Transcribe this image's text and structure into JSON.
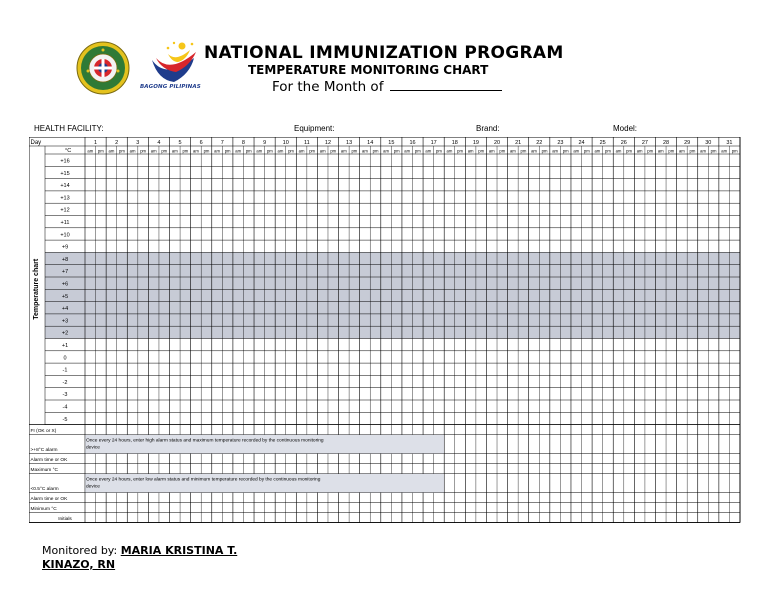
{
  "header": {
    "title": "NATIONAL IMMUNIZATION PROGRAM",
    "subtitle": "TEMPERATURE MONITORING CHART",
    "month_label": "For the Month of",
    "logo_text": "BAGONG PILIPINAS",
    "seal_text": "REPUBLIKA NG PILIPINAS · KAGAWARAN NG KALUSUGAN"
  },
  "fields": {
    "facility": "HEALTH FACILITY:",
    "equipment": "Equipment:",
    "brand": "Brand:",
    "model": "Model:"
  },
  "grid": {
    "day_label": "Day",
    "unit_label": "°C",
    "am": "am",
    "pm": "pm",
    "days": [
      "1",
      "2",
      "3",
      "4",
      "5",
      "6",
      "7",
      "8",
      "9",
      "10",
      "11",
      "12",
      "13",
      "14",
      "15",
      "16",
      "17",
      "18",
      "19",
      "20",
      "21",
      "22",
      "23",
      "24",
      "25",
      "26",
      "27",
      "28",
      "29",
      "30",
      "31"
    ],
    "side_label": "Temperature chart",
    "temps": [
      "+16",
      "+15",
      "+14",
      "+13",
      "+12",
      "+11",
      "+10",
      "+9",
      "+8",
      "+7",
      "+6",
      "+5",
      "+4",
      "+3",
      "+2",
      "+1",
      "0",
      "-1",
      "-2",
      "-3",
      "-4",
      "-5"
    ],
    "shaded_temps": [
      "+8",
      "+7",
      "+6",
      "+5",
      "+4",
      "+3",
      "+2"
    ],
    "rows": {
      "fi": "FI (OK or X)",
      "high_alarm": ">+8°C alarm",
      "alarm_time_1": "Alarm time or OK",
      "maximum": "Maximum °C",
      "low_alarm": "<0.5°C alarm",
      "alarm_time_2": "Alarm time or OK",
      "minimum": "Minimum °C",
      "initials": "Initials"
    },
    "high_alarm_note_1": "Once every 24 hours, enter high alarm status and maximum temperature recorded by the continuous monitoring",
    "high_alarm_note_2": "device",
    "low_alarm_note_1": "Once every 24 hours, enter low alarm status and minimum temperature recorded by the continuous monitoring",
    "low_alarm_note_2": "device"
  },
  "footer": {
    "monitored_label": "Monitored by:",
    "name_line_1": "MARIA KRISTINA T.",
    "name_line_2": "KINAZO, RN"
  },
  "colors": {
    "shade": "#c7cbd6",
    "note_shade": "#dde0e8",
    "seal_green": "#2f7a36",
    "seal_gold": "#e4c21e",
    "flag_blue": "#1f3c8c",
    "flag_red": "#d7262b",
    "flag_yellow": "#f6c619"
  }
}
